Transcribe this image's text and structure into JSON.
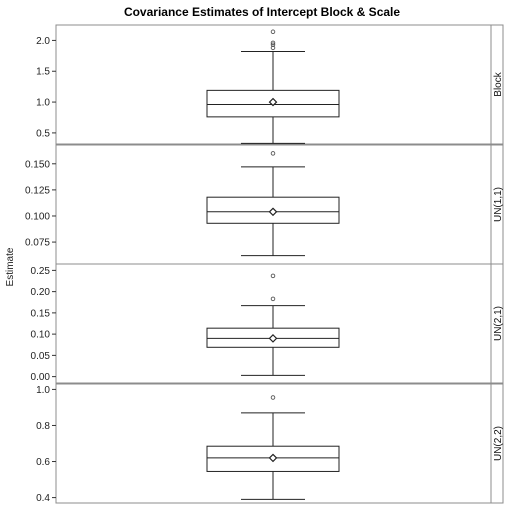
{
  "chart_data": {
    "type": "box",
    "title": "Covariance Estimates of Intercept Block & Scale",
    "ylabel": "Estimate",
    "panels": [
      {
        "name": "Block",
        "ylim": [
          0.32,
          2.25
        ],
        "ticks": [
          0.5,
          1.0,
          1.5,
          2.0
        ],
        "tick_labels": [
          "0.5",
          "1.0",
          "1.5",
          "2.0"
        ],
        "box": {
          "min": 0.33,
          "q1": 0.76,
          "median": 0.96,
          "mean": 1.0,
          "q3": 1.19,
          "max": 1.82
        },
        "outliers": [
          1.88,
          1.93,
          1.96,
          2.14
        ]
      },
      {
        "name": "UN(1,1)",
        "ylim": [
          0.054,
          0.168
        ],
        "ticks": [
          0.075,
          0.1,
          0.125,
          0.15
        ],
        "tick_labels": [
          "0.075",
          "0.100",
          "0.125",
          "0.150"
        ],
        "box": {
          "min": 0.062,
          "q1": 0.093,
          "median": 0.104,
          "mean": 0.104,
          "q3": 0.118,
          "max": 0.147
        },
        "outliers": [
          0.16
        ]
      },
      {
        "name": "UN(2,1)",
        "ylim": [
          -0.015,
          0.265
        ],
        "ticks": [
          0.0,
          0.05,
          0.1,
          0.15,
          0.2,
          0.25
        ],
        "tick_labels": [
          "0.00",
          "0.05",
          "0.10",
          "0.15",
          "0.20",
          "0.25"
        ],
        "box": {
          "min": 0.003,
          "q1": 0.069,
          "median": 0.09,
          "mean": 0.09,
          "q3": 0.114,
          "max": 0.167
        },
        "outliers": [
          0.183,
          0.237
        ]
      },
      {
        "name": "UN(2,2)",
        "ylim": [
          0.37,
          1.03
        ],
        "ticks": [
          0.4,
          0.6,
          0.8,
          1.0
        ],
        "tick_labels": [
          "0.4",
          "0.6",
          "0.8",
          "1.0"
        ],
        "box": {
          "min": 0.39,
          "q1": 0.545,
          "median": 0.62,
          "mean": 0.62,
          "q3": 0.685,
          "max": 0.87
        },
        "outliers": [
          0.955
        ]
      }
    ]
  }
}
